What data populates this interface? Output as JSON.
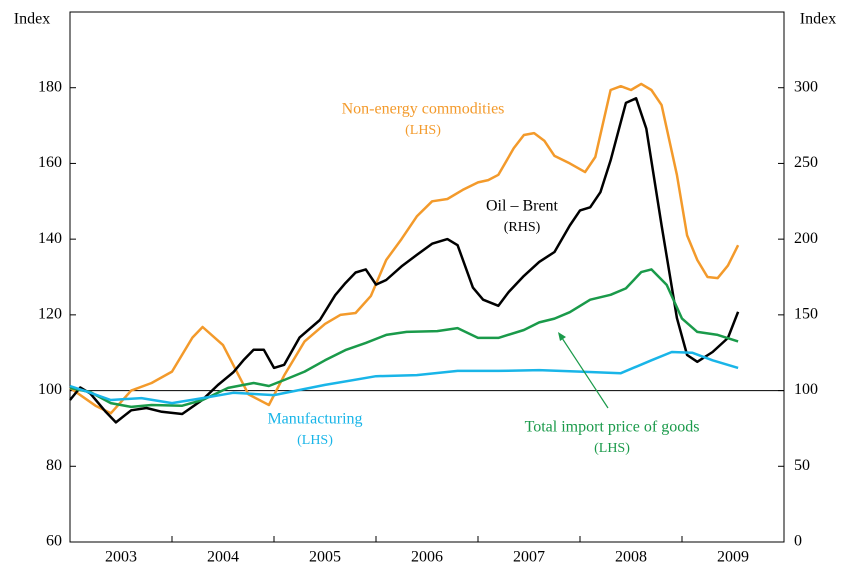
{
  "chart_data": {
    "type": "line",
    "ylabel": "Index",
    "y2label": "Index",
    "xlim": [
      2003,
      2010
    ],
    "xticks": [
      {
        "value": 2003.5,
        "label": "2003"
      },
      {
        "value": 2004.5,
        "label": "2004"
      },
      {
        "value": 2005.5,
        "label": "2005"
      },
      {
        "value": 2006.5,
        "label": "2006"
      },
      {
        "value": 2007.5,
        "label": "2007"
      },
      {
        "value": 2008.5,
        "label": "2008"
      },
      {
        "value": 2009.5,
        "label": "2009"
      }
    ],
    "ylim": [
      60,
      200
    ],
    "yticks": [
      60,
      80,
      100,
      120,
      140,
      160,
      180
    ],
    "y2lim": [
      0,
      350
    ],
    "y2ticks": [
      0,
      50,
      100,
      150,
      200,
      250,
      300
    ],
    "hline": 100,
    "series": [
      {
        "name": "Non-energy commodities",
        "note": "(LHS)",
        "color": "#f39a2b",
        "x": [
          2003.0,
          2003.25,
          2003.4,
          2003.6,
          2003.8,
          2004.0,
          2004.2,
          2004.3,
          2004.5,
          2004.75,
          2004.95,
          2005.1,
          2005.3,
          2005.5,
          2005.65,
          2005.8,
          2005.95,
          2006.1,
          2006.25,
          2006.4,
          2006.55,
          2006.7,
          2006.85,
          2007.0,
          2007.1,
          2007.2,
          2007.35,
          2007.45,
          2007.55,
          2007.65,
          2007.75,
          2007.9,
          2008.05,
          2008.15,
          2008.3,
          2008.4,
          2008.5,
          2008.6,
          2008.7,
          2008.8,
          2008.95,
          2009.05,
          2009.15,
          2009.25,
          2009.35,
          2009.45,
          2009.55
        ],
        "values": [
          100.7,
          96,
          94,
          100,
          102,
          105,
          114,
          116.8,
          112,
          99,
          96.2,
          104,
          113,
          117.6,
          120,
          120.5,
          125,
          134.5,
          140,
          146,
          150,
          150.6,
          153,
          155,
          155.6,
          157,
          164,
          167.5,
          168,
          166,
          162,
          160,
          157.7,
          161.7,
          179.4,
          180.4,
          179.4,
          181,
          179.4,
          175.4,
          157,
          141,
          134.5,
          130,
          129.7,
          133,
          138.4
        ]
      },
      {
        "name": "Oil – Brent",
        "note": "(RHS)",
        "color": "#000000",
        "axis": "y2",
        "x": [
          2003.0,
          2003.1,
          2003.2,
          2003.35,
          2003.45,
          2003.6,
          2003.75,
          2003.9,
          2004.1,
          2004.3,
          2004.45,
          2004.6,
          2004.7,
          2004.8,
          2004.9,
          2005.0,
          2005.1,
          2005.25,
          2005.45,
          2005.6,
          2005.7,
          2005.8,
          2005.9,
          2006.0,
          2006.1,
          2006.25,
          2006.4,
          2006.55,
          2006.7,
          2006.8,
          2006.95,
          2007.05,
          2007.2,
          2007.3,
          2007.45,
          2007.6,
          2007.75,
          2007.9,
          2008.0,
          2008.1,
          2008.2,
          2008.3,
          2008.45,
          2008.55,
          2008.65,
          2008.8,
          2008.95,
          2009.05,
          2009.15,
          2009.3,
          2009.45,
          2009.55
        ],
        "values": [
          93.8,
          102,
          98,
          86,
          79,
          87,
          88.5,
          86,
          84.5,
          94,
          103.7,
          112,
          120,
          127,
          127,
          115,
          117,
          135,
          146.6,
          163,
          171,
          178,
          180,
          170,
          173,
          182,
          189.6,
          197,
          200,
          196,
          168,
          160,
          156,
          165,
          175.7,
          185,
          191.5,
          209,
          219,
          221,
          231,
          252,
          290,
          293,
          273,
          209,
          148,
          123.5,
          119,
          125.5,
          134.7,
          152
        ]
      },
      {
        "name": "Total import price of goods",
        "note": "(LHS)",
        "color": "#1a9a4a",
        "x": [
          2003.0,
          2003.2,
          2003.4,
          2003.6,
          2003.8,
          2004.1,
          2004.3,
          2004.55,
          2004.8,
          2004.95,
          2005.1,
          2005.3,
          2005.5,
          2005.7,
          2005.9,
          2006.1,
          2006.3,
          2006.6,
          2006.8,
          2007.0,
          2007.2,
          2007.45,
          2007.6,
          2007.75,
          2007.9,
          2008.1,
          2008.3,
          2008.45,
          2008.6,
          2008.7,
          2008.85,
          2009.0,
          2009.15,
          2009.35,
          2009.55
        ],
        "values": [
          100.7,
          99.6,
          96.7,
          95.7,
          96.2,
          96,
          97.5,
          100.7,
          102,
          101.2,
          102.8,
          105,
          108,
          110.7,
          112.6,
          114.7,
          115.5,
          115.7,
          116.5,
          113.9,
          113.9,
          116,
          118,
          119,
          120.7,
          124,
          125.3,
          127,
          131.3,
          132,
          127.9,
          119,
          115.5,
          114.7,
          113
        ]
      },
      {
        "name": "Manufacturing",
        "note": "(LHS)",
        "color": "#19b5e8",
        "x": [
          2003.0,
          2003.2,
          2003.4,
          2003.7,
          2004.0,
          2004.3,
          2004.6,
          2005.0,
          2005.5,
          2006.0,
          2006.4,
          2006.8,
          2007.2,
          2007.6,
          2008.0,
          2008.4,
          2008.7,
          2008.9,
          2009.1,
          2009.3,
          2009.55
        ],
        "values": [
          101.2,
          99.4,
          97.5,
          98,
          96.7,
          98,
          99.4,
          98.8,
          101.5,
          103.8,
          104.1,
          105.2,
          105.2,
          105.4,
          105,
          104.6,
          108,
          110.2,
          110,
          108,
          106
        ]
      }
    ]
  }
}
